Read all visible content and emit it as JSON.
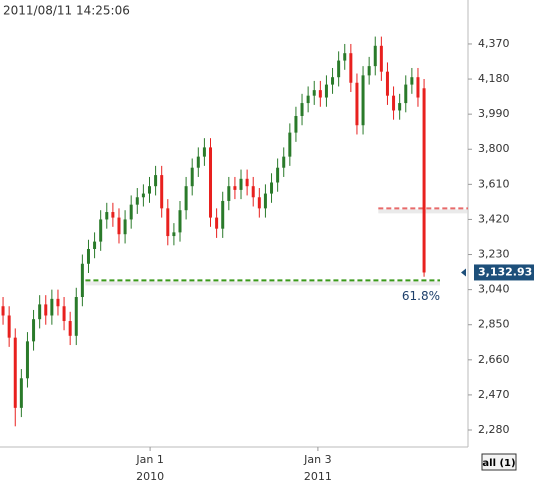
{
  "chart_data": {
    "type": "candlestick",
    "timestamp": "2011/08/11 14:25:06",
    "up_color": "#2a7a2a",
    "down_color": "#e8201e",
    "open": [
      2950,
      2900,
      2780,
      2400,
      2560,
      2760,
      2880,
      2960,
      2900,
      2990,
      2950,
      2870,
      2790,
      3000,
      3180,
      3260,
      3300,
      3420,
      3460,
      3430,
      3340,
      3420,
      3500,
      3540,
      3560,
      3600,
      3660,
      3480,
      3330,
      3350,
      3470,
      3600,
      3700,
      3760,
      3810,
      3430,
      3370,
      3520,
      3600,
      3580,
      3640,
      3600,
      3540,
      3480,
      3560,
      3620,
      3700,
      3760,
      3890,
      3980,
      4050,
      4090,
      4120,
      4080,
      4150,
      4190,
      4280,
      4320,
      4160,
      3930,
      4200,
      4250,
      4360,
      4220,
      4090,
      4010,
      4050,
      4150,
      4190,
      4130
    ],
    "high": [
      3000,
      2950,
      2830,
      2610,
      2810,
      2930,
      3010,
      3010,
      3040,
      3040,
      3000,
      2920,
      3050,
      3230,
      3310,
      3350,
      3470,
      3510,
      3510,
      3480,
      3470,
      3550,
      3590,
      3610,
      3650,
      3710,
      3710,
      3530,
      3400,
      3520,
      3650,
      3750,
      3810,
      3860,
      3860,
      3480,
      3570,
      3650,
      3650,
      3690,
      3690,
      3650,
      3590,
      3610,
      3670,
      3750,
      3810,
      3940,
      4030,
      4100,
      4140,
      4170,
      4170,
      4200,
      4240,
      4330,
      4370,
      4370,
      4210,
      4250,
      4300,
      4410,
      4410,
      4270,
      4140,
      4100,
      4200,
      4240,
      4240,
      4180
    ],
    "low": [
      2850,
      2730,
      2300,
      2350,
      2510,
      2710,
      2830,
      2850,
      2850,
      2900,
      2820,
      2740,
      2740,
      2950,
      3130,
      3210,
      3250,
      3370,
      3380,
      3290,
      3290,
      3370,
      3450,
      3490,
      3510,
      3550,
      3430,
      3280,
      3280,
      3300,
      3420,
      3550,
      3650,
      3710,
      3380,
      3320,
      3320,
      3470,
      3530,
      3530,
      3550,
      3490,
      3430,
      3430,
      3510,
      3570,
      3650,
      3710,
      3840,
      3930,
      4000,
      4040,
      4030,
      4030,
      4100,
      4140,
      4230,
      4110,
      3880,
      3880,
      4150,
      4200,
      4170,
      4040,
      3960,
      3960,
      4000,
      4100,
      4030,
      3110
    ],
    "close": [
      2900,
      2780,
      2400,
      2560,
      2760,
      2880,
      2960,
      2900,
      2990,
      2950,
      2870,
      2790,
      3000,
      3180,
      3260,
      3300,
      3420,
      3460,
      3430,
      3340,
      3420,
      3500,
      3540,
      3560,
      3600,
      3660,
      3480,
      3330,
      3350,
      3470,
      3600,
      3700,
      3760,
      3810,
      3430,
      3370,
      3520,
      3600,
      3580,
      3640,
      3600,
      3540,
      3480,
      3560,
      3620,
      3700,
      3760,
      3890,
      3980,
      4050,
      4090,
      4120,
      4080,
      4150,
      4190,
      4280,
      4320,
      4160,
      3930,
      4200,
      4250,
      4360,
      4220,
      4090,
      4010,
      4050,
      4150,
      4190,
      4080,
      3132.93
    ],
    "xlim": [
      -0.5,
      76.2
    ],
    "xticks": [
      {
        "value": 24.1,
        "label": "Jan 1"
      },
      {
        "value": 51.6,
        "label": "Jan 3"
      }
    ],
    "xtick_years": [
      "2010",
      "2011"
    ],
    "ylim": [
      2188,
      4608
    ],
    "yticks": [
      {
        "value": 2280,
        "label": "2,280"
      },
      {
        "value": 2470,
        "label": "2,470"
      },
      {
        "value": 2660,
        "label": "2,660"
      },
      {
        "value": 2850,
        "label": "2,850"
      },
      {
        "value": 3040,
        "label": "3,040"
      },
      {
        "value": 3230,
        "label": "3,230"
      },
      {
        "value": 3420,
        "label": "3,420"
      },
      {
        "value": 3610,
        "label": "3,610"
      },
      {
        "value": 3800,
        "label": "3,800"
      },
      {
        "value": 3990,
        "label": "3,990"
      },
      {
        "value": 4180,
        "label": "4,180"
      },
      {
        "value": 4370,
        "label": "4,370"
      }
    ],
    "levels": [
      {
        "value": 3480,
        "color": "#e86a6a",
        "start": 61.5
      },
      {
        "value": 3090,
        "color": "#3a9a1a",
        "start": 13.5,
        "label": "61.8%"
      }
    ],
    "last_price": {
      "value": 3132.93,
      "label": "3,132.93",
      "color": "#1d4f7a"
    },
    "button": "all (1)"
  }
}
